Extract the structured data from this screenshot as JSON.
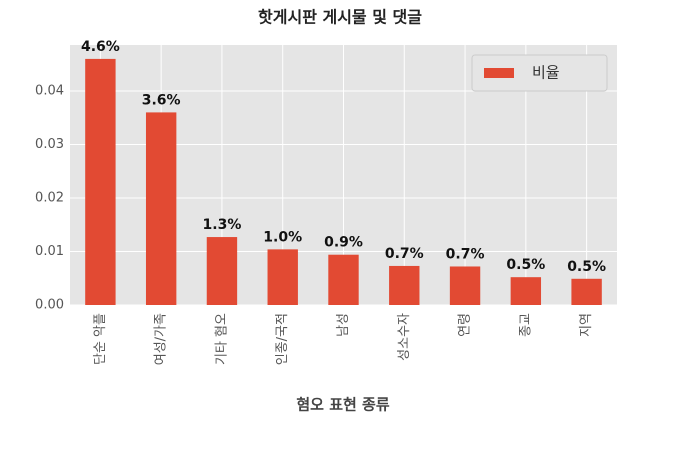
{
  "chart_data": {
    "type": "bar",
    "title": "핫게시판 게시물 및 댓글",
    "x_label": "혐오 표현 종류",
    "categories": [
      "단순 악플",
      "여성/가족",
      "기타 혐오",
      "인종/국적",
      "남성",
      "성소수자",
      "연령",
      "종교",
      "지역"
    ],
    "series": [
      {
        "name": "비율",
        "color": "#e24a33",
        "values": [
          0.046,
          0.036,
          0.0127,
          0.0104,
          0.0094,
          0.0073,
          0.0072,
          0.0052,
          0.0049
        ],
        "value_labels": [
          "4.6%",
          "3.6%",
          "1.3%",
          "1.0%",
          "0.9%",
          "0.7%",
          "0.7%",
          "0.5%",
          "0.5%"
        ]
      }
    ],
    "ylim": [
      0,
      0.0486
    ],
    "yticks": [
      {
        "value": 0,
        "label": "0.00"
      },
      0.01,
      0.02,
      0.03,
      0.04
    ],
    "grid": true,
    "legend": "upper right"
  }
}
